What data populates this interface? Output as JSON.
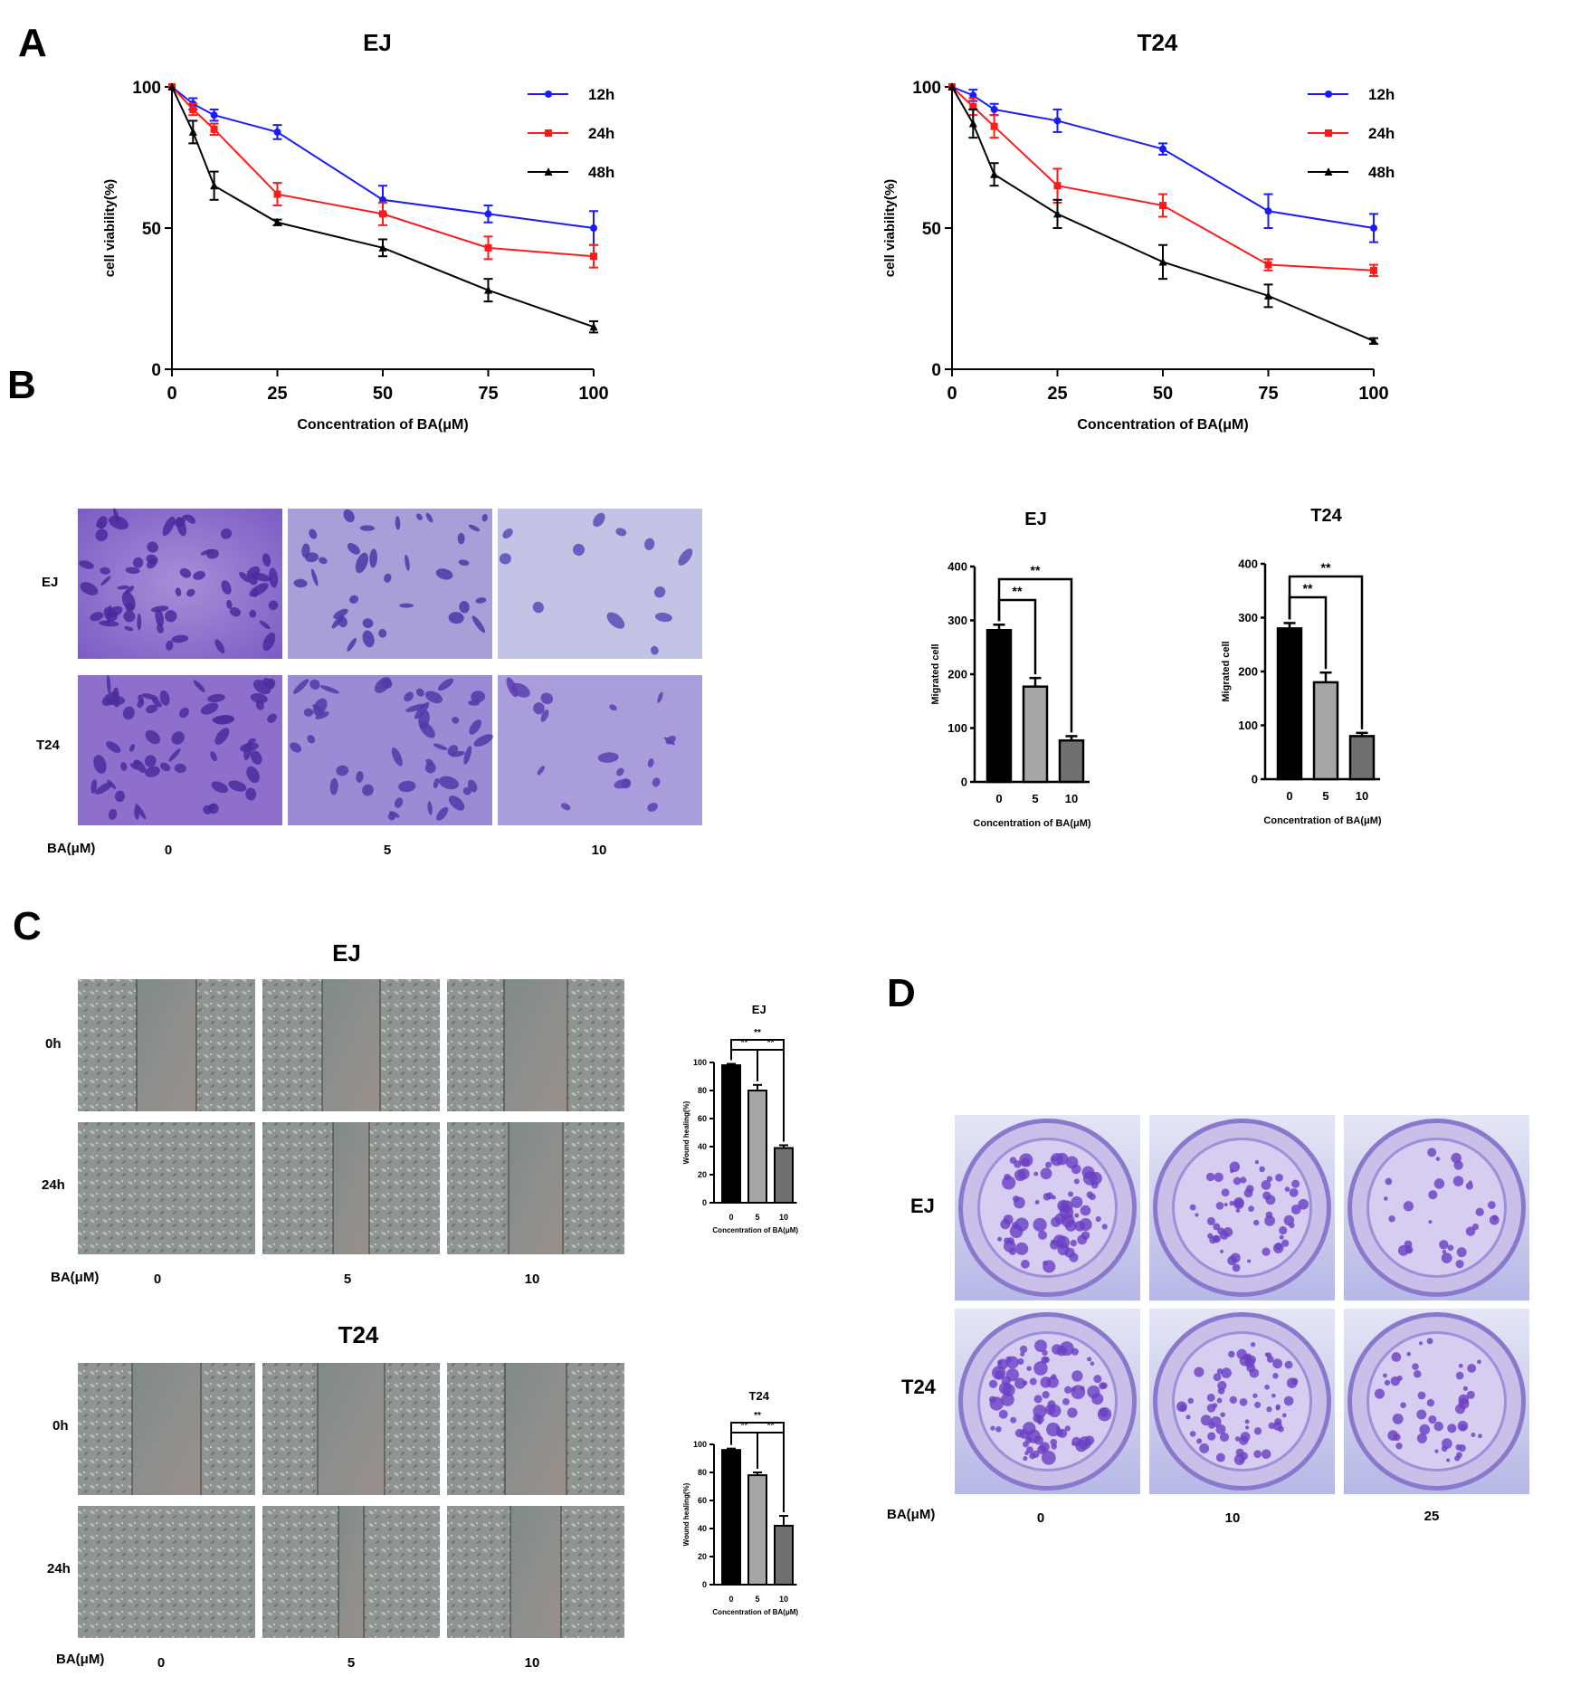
{
  "panels": {
    "A": {
      "letter": "A",
      "x_ticks": [
        "0",
        "25",
        "50",
        "75",
        "100"
      ],
      "y_ticks": [
        "0",
        "50",
        "100"
      ],
      "xlabel": "Concentration of BA(μM)",
      "ylabel": "cell viability(%)",
      "series_colors": {
        "12h": "#1a1aff",
        "24h": "#ff1a1a",
        "48h": "#000000"
      }
    },
    "B": {
      "letter": "B",
      "rows": [
        "EJ",
        "T24"
      ],
      "ba_label": "BA(μM)",
      "doses": [
        "0",
        "5",
        "10"
      ],
      "bar_xlabel": "Concentration of BA(μM)",
      "bar_ylabel": "Migrated cell",
      "y_ticks": [
        "0",
        "100",
        "200",
        "300",
        "400"
      ],
      "sig": "**"
    },
    "C": {
      "letter": "C",
      "groups": [
        "EJ",
        "T24"
      ],
      "rows": [
        "0h",
        "24h"
      ],
      "ba_label": "BA(μM)",
      "doses": [
        "0",
        "5",
        "10"
      ],
      "bar_xlabel": "Concentration of BA(μM)",
      "bar_ylabel": "Wound healing(%)",
      "y_ticks": [
        "0",
        "20",
        "40",
        "60",
        "80",
        "100"
      ],
      "sig": "**"
    },
    "D": {
      "letter": "D",
      "rows": [
        "EJ",
        "T24"
      ],
      "ba_label": "BA(μM)",
      "doses": [
        "0",
        "10",
        "25"
      ]
    }
  },
  "chart_data": [
    {
      "panel": "A",
      "title": "EJ",
      "type": "line",
      "x": [
        0,
        5,
        10,
        25,
        50,
        75,
        100
      ],
      "xlabel": "Concentration of BA(μM)",
      "ylabel": "cell viability(%)",
      "xlim": [
        0,
        100
      ],
      "ylim": [
        0,
        100
      ],
      "legend": "top-right",
      "series": [
        {
          "name": "12h",
          "values": [
            100,
            94,
            90,
            84,
            60,
            55,
            50
          ],
          "err": [
            0,
            2,
            2,
            2.5,
            5,
            3,
            6
          ]
        },
        {
          "name": "24h",
          "values": [
            100,
            92,
            85,
            62,
            55,
            43,
            40
          ],
          "err": [
            0,
            2,
            2,
            4,
            4,
            4,
            4
          ]
        },
        {
          "name": "48h",
          "values": [
            100,
            84,
            65,
            52,
            43,
            28,
            15
          ],
          "err": [
            0,
            4,
            5,
            1,
            3,
            4,
            2
          ]
        }
      ]
    },
    {
      "panel": "A",
      "title": "T24",
      "type": "line",
      "x": [
        0,
        5,
        10,
        25,
        50,
        75,
        100
      ],
      "xlabel": "Concentration of BA(μM)",
      "ylabel": "cell viability(%)",
      "xlim": [
        0,
        100
      ],
      "ylim": [
        0,
        100
      ],
      "legend": "top-right",
      "series": [
        {
          "name": "12h",
          "values": [
            100,
            97,
            92,
            88,
            78,
            56,
            50
          ],
          "err": [
            0,
            2,
            2,
            4,
            2,
            6,
            5
          ]
        },
        {
          "name": "24h",
          "values": [
            100,
            93,
            86,
            65,
            58,
            37,
            35
          ],
          "err": [
            0,
            3,
            4,
            6,
            4,
            2,
            2
          ]
        },
        {
          "name": "48h",
          "values": [
            100,
            87,
            69,
            55,
            38,
            26,
            10
          ],
          "err": [
            0,
            5,
            4,
            5,
            6,
            4,
            1
          ]
        }
      ]
    },
    {
      "panel": "B",
      "title": "EJ",
      "type": "bar",
      "categories": [
        "0",
        "5",
        "10"
      ],
      "values": [
        282,
        177,
        77
      ],
      "err": [
        10,
        16,
        8
      ],
      "xlabel": "Concentration of BA(μM)",
      "ylabel": "Migrated cell",
      "ylim": [
        0,
        400
      ],
      "significance": [
        {
          "from": 0,
          "to": 1,
          "label": "**"
        },
        {
          "from": 0,
          "to": 2,
          "label": "**"
        }
      ]
    },
    {
      "panel": "B",
      "title": "T24",
      "type": "bar",
      "categories": [
        "0",
        "5",
        "10"
      ],
      "values": [
        280,
        180,
        80
      ],
      "err": [
        10,
        18,
        6
      ],
      "xlabel": "Concentration of BA(μM)",
      "ylabel": "Migrated cell",
      "ylim": [
        0,
        400
      ],
      "significance": [
        {
          "from": 0,
          "to": 1,
          "label": "**"
        },
        {
          "from": 0,
          "to": 2,
          "label": "**"
        }
      ]
    },
    {
      "panel": "C",
      "title": "EJ",
      "type": "bar",
      "categories": [
        "0",
        "5",
        "10"
      ],
      "values": [
        98,
        80,
        39
      ],
      "err": [
        1,
        4,
        2
      ],
      "xlabel": "Concentration of BA(μM)",
      "ylabel": "Wound healing(%)",
      "ylim": [
        0,
        100
      ],
      "significance": [
        {
          "from": 0,
          "to": 1,
          "label": "**"
        },
        {
          "from": 1,
          "to": 2,
          "label": "**"
        },
        {
          "from": 0,
          "to": 2,
          "label": "**"
        }
      ]
    },
    {
      "panel": "C",
      "title": "T24",
      "type": "bar",
      "categories": [
        "0",
        "5",
        "10"
      ],
      "values": [
        96,
        78,
        42
      ],
      "err": [
        1,
        2,
        7
      ],
      "xlabel": "Concentration of BA(μM)",
      "ylabel": "Wound healing(%)",
      "ylim": [
        0,
        100
      ],
      "significance": [
        {
          "from": 0,
          "to": 1,
          "label": "**"
        },
        {
          "from": 1,
          "to": 2,
          "label": "**"
        },
        {
          "from": 0,
          "to": 2,
          "label": "**"
        }
      ]
    }
  ]
}
